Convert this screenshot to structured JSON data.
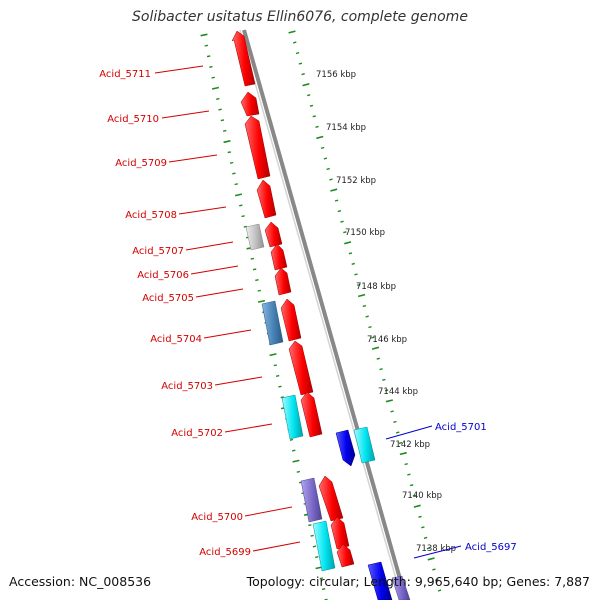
{
  "title": "Solibacter usitatus Ellin6076, complete genome",
  "accession": "Accession: NC_008536",
  "summary": "Topology: circular; Length: 9,965,640 bp; Genes: 7,887",
  "ticks": [
    {
      "label": "7156 kbp"
    },
    {
      "label": "7154 kbp"
    },
    {
      "label": "7152 kbp"
    },
    {
      "label": "7150 kbp"
    },
    {
      "label": "7148 kbp"
    },
    {
      "label": "7146 kbp"
    },
    {
      "label": "7144 kbp"
    },
    {
      "label": "7142 kbp"
    },
    {
      "label": "7140 kbp"
    },
    {
      "label": "7138 kbp"
    }
  ],
  "gene_labels": [
    {
      "name": "Acid_5711",
      "color": "#d40000"
    },
    {
      "name": "Acid_5710",
      "color": "#d40000"
    },
    {
      "name": "Acid_5709",
      "color": "#d40000"
    },
    {
      "name": "Acid_5708",
      "color": "#d40000"
    },
    {
      "name": "Acid_5707",
      "color": "#d40000"
    },
    {
      "name": "Acid_5706",
      "color": "#d40000"
    },
    {
      "name": "Acid_5705",
      "color": "#d40000"
    },
    {
      "name": "Acid_5704",
      "color": "#d40000"
    },
    {
      "name": "Acid_5703",
      "color": "#d40000"
    },
    {
      "name": "Acid_5702",
      "color": "#d40000"
    },
    {
      "name": "Acid_5701",
      "color": "#0000cc"
    },
    {
      "name": "Acid_5700",
      "color": "#d40000"
    },
    {
      "name": "Acid_5699",
      "color": "#d40000"
    },
    {
      "name": "Acid_5697",
      "color": "#0000cc"
    }
  ],
  "colors": {
    "forward_gene": "#ff0000",
    "reverse_gene": "#0000ee",
    "cyan_feature": "#00e5f0",
    "steel_feature": "#4682b4",
    "purple_feature": "#7b68c8",
    "grey_feature": "#c0c0c0",
    "backbone": "#888888",
    "tick": "#1e8c1e"
  }
}
